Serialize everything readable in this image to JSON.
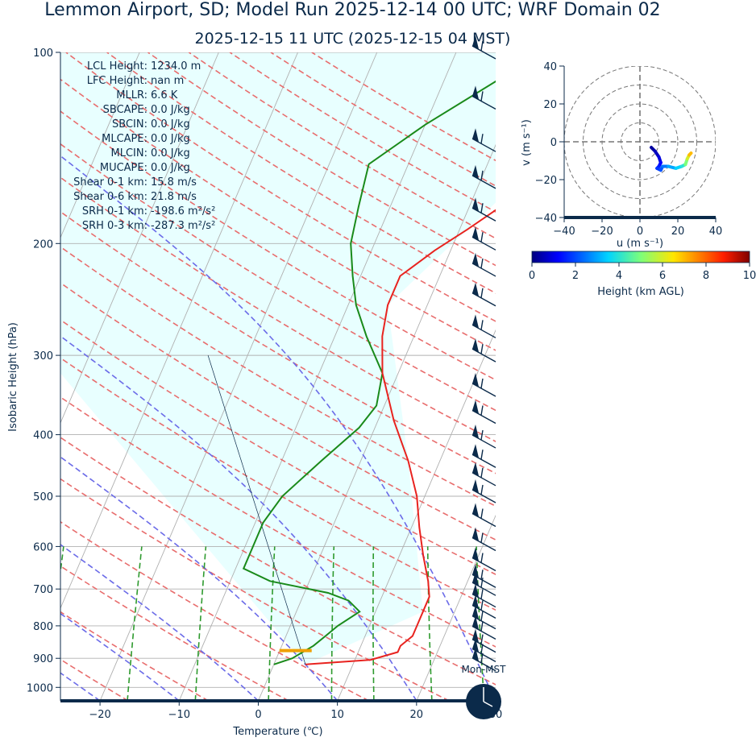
{
  "title": "Lemmon Airport, SD; Model Run 2025-12-14 00 UTC; WRF Domain 02",
  "subtitle": "2025-12-15 11 UTC  (2025-12-15 04 MST)",
  "skewt": {
    "xlabel": "Temperature (℃)",
    "ylabel": "Isobaric Height (hPa)",
    "xlim": [
      -25,
      30
    ],
    "ylim": [
      1050,
      100
    ],
    "x_ticks": [
      "−20",
      "−10",
      "0",
      "10",
      "20",
      "30"
    ],
    "x_tick_values": [
      -20,
      -10,
      0,
      10,
      20,
      30
    ],
    "y_ticks": [
      "100",
      "200",
      "300",
      "400",
      "500",
      "600",
      "700",
      "800",
      "900",
      "1000"
    ],
    "y_tick_values": [
      100,
      200,
      300,
      400,
      500,
      600,
      700,
      800,
      900,
      1000
    ],
    "parameters": [
      "LCL Height: 1234.0 m",
      "LFC Height: nan m",
      "MLLR: 6.6 K",
      "SBCAPE: 0.0 J/kg",
      "SBCIN: 0.0 J/kg",
      "MLCAPE: 0.0 J/kg",
      "MLCIN: 0.0 J/kg",
      "MUCAPE: 0.0 J/kg",
      "Shear 0-1 km: 15.8 m/s",
      "Shear 0-6 km: 21.8 m/s",
      "SRH 0-1 km: -198.6 m²/s²",
      "SRH 0-3 km: -287.3 m²/s²"
    ],
    "clock_label": "Mon-MST",
    "colors": {
      "temperature": "#e8231f",
      "dewpoint": "#1a8a1a",
      "dry_adiabat": "#e86d6d",
      "moist_adiabat": "#6b6be8",
      "mixing_ratio": "#2e9a2e",
      "isotherm": "#b0b0b0",
      "cape_fill": "#e8ffff",
      "lcl": "#f0a000",
      "axis": "#0b2a4a"
    }
  },
  "hodograph": {
    "xlabel": "u (m s⁻¹)",
    "ylabel": "v (m s⁻¹)",
    "xlim": [
      -40,
      40
    ],
    "ylim": [
      -40,
      40
    ],
    "x_ticks": [
      "−40",
      "−20",
      "0",
      "20",
      "40"
    ],
    "y_ticks": [
      "40",
      "20",
      "0",
      "−20",
      "−40"
    ],
    "colorbar_label": "Height (km AGL)",
    "colorbar_ticks": [
      "0",
      "2",
      "4",
      "6",
      "8",
      "10"
    ]
  },
  "chart_data": [
    {
      "type": "line",
      "title": "2025-12-15 11 UTC  (2025-12-15 04 MST)",
      "xlabel": "Temperature (℃)",
      "ylabel": "Isobaric Height (hPa)",
      "y_scale": "log",
      "series": [
        {
          "name": "temperature",
          "points": [
            [
              4,
              920
            ],
            [
              12,
              905
            ],
            [
              15,
              880
            ],
            [
              15,
              860
            ],
            [
              16,
              830
            ],
            [
              16,
              800
            ],
            [
              16,
              760
            ],
            [
              16,
              720
            ],
            [
              15,
              680
            ],
            [
              13,
              620
            ],
            [
              11,
              560
            ],
            [
              9,
              500
            ],
            [
              6,
              440
            ],
            [
              2,
              380
            ],
            [
              -2,
              320
            ],
            [
              -4,
              280
            ],
            [
              -5,
              250
            ],
            [
              -5,
              225
            ],
            [
              -2,
              205
            ],
            [
              1,
              190
            ],
            [
              5,
              170
            ],
            [
              8,
              150
            ],
            [
              11,
              130
            ],
            [
              15,
              100
            ]
          ]
        },
        {
          "name": "dewpoint",
          "points": [
            [
              0,
              920
            ],
            [
              2,
              900
            ],
            [
              4,
              860
            ],
            [
              5,
              830
            ],
            [
              6,
              800
            ],
            [
              8,
              760
            ],
            [
              6,
              730
            ],
            [
              3,
              710
            ],
            [
              -5,
              680
            ],
            [
              -9,
              650
            ],
            [
              -9,
              600
            ],
            [
              -9,
              550
            ],
            [
              -8,
              500
            ],
            [
              -5,
              440
            ],
            [
              -2,
              390
            ],
            [
              -1,
              360
            ],
            [
              -2,
              320
            ],
            [
              -6,
              280
            ],
            [
              -9,
              250
            ],
            [
              -11,
              225
            ],
            [
              -13,
              200
            ],
            [
              -14,
              175
            ],
            [
              -15,
              150
            ],
            [
              -10,
              130
            ],
            [
              -3,
              110
            ],
            [
              1,
              100
            ]
          ]
        }
      ],
      "lcl": {
        "pressure_hpa": 875,
        "temperature": 2
      },
      "wind_barbs_hpa": [
        100,
        120,
        140,
        160,
        180,
        200,
        220,
        245,
        275,
        300,
        340,
        375,
        410,
        440,
        470,
        500,
        545,
        595,
        640,
        680,
        700,
        730,
        760,
        790,
        820,
        860,
        890,
        920
      ]
    },
    {
      "type": "line",
      "title": "hodograph",
      "xlabel": "u (m s⁻¹)",
      "ylabel": "v (m s⁻¹)",
      "xlim": [
        -40,
        40
      ],
      "ylim": [
        -40,
        40
      ],
      "points_uv_height_km": [
        [
          6,
          -3,
          0.0
        ],
        [
          8,
          -5,
          0.3
        ],
        [
          10,
          -8,
          0.6
        ],
        [
          11,
          -11,
          0.9
        ],
        [
          10,
          -13,
          1.2
        ],
        [
          9,
          -14,
          1.5
        ],
        [
          11,
          -15,
          1.8
        ],
        [
          12,
          -13,
          2.1
        ],
        [
          15,
          -13,
          2.5
        ],
        [
          19,
          -14,
          3.0
        ],
        [
          22,
          -13,
          3.5
        ],
        [
          24,
          -12,
          4.0
        ],
        [
          25,
          -9,
          5.0
        ],
        [
          26,
          -7,
          6.0
        ],
        [
          27,
          -6,
          7.0
        ]
      ]
    }
  ]
}
